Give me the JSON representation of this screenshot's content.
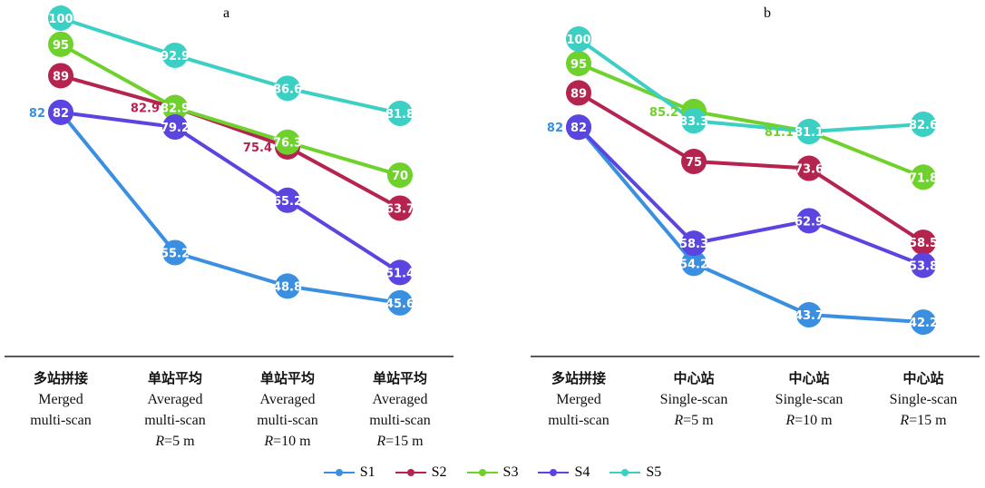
{
  "chart_data": [
    {
      "type": "line",
      "title": "a",
      "ylim": [
        40,
        100
      ],
      "categories": [
        {
          "zh": "多站拼接",
          "en1": "Merged",
          "en2": "multi-scan",
          "r": ""
        },
        {
          "zh": "单站平均",
          "en1": "Averaged",
          "en2": "multi-scan",
          "r": "R=5 m"
        },
        {
          "zh": "单站平均",
          "en1": "Averaged",
          "en2": "multi-scan",
          "r": "R=10 m"
        },
        {
          "zh": "单站平均",
          "en1": "Averaged",
          "en2": "multi-scan",
          "r": "R=15 m"
        }
      ],
      "series": [
        {
          "name": "S1",
          "color": "#3b8fe0",
          "values": [
            82,
            55.2,
            48.8,
            45.6
          ]
        },
        {
          "name": "S2",
          "color": "#b5234f",
          "values": [
            89,
            82.9,
            75.4,
            63.7
          ]
        },
        {
          "name": "S3",
          "color": "#6fd12b",
          "values": [
            95,
            82.9,
            76.3,
            70
          ]
        },
        {
          "name": "S4",
          "color": "#5a45e0",
          "values": [
            82,
            79.2,
            65.2,
            51.4
          ]
        },
        {
          "name": "S5",
          "color": "#3ccfc4",
          "values": [
            100,
            92.9,
            86.6,
            81.8
          ]
        }
      ]
    },
    {
      "type": "line",
      "title": "b",
      "ylim": [
        40,
        100
      ],
      "categories": [
        {
          "zh": "多站拼接",
          "en1": "Merged",
          "en2": "multi-scan",
          "r": ""
        },
        {
          "zh": "中心站",
          "en1": "Single-scan",
          "en2": "R=5 m",
          "r": ""
        },
        {
          "zh": "中心站",
          "en1": "Single-scan",
          "en2": "R=10 m",
          "r": ""
        },
        {
          "zh": "中心站",
          "en1": "Single-scan",
          "en2": "R=15 m",
          "r": ""
        }
      ],
      "series": [
        {
          "name": "S1",
          "color": "#3b8fe0",
          "values": [
            82,
            54.2,
            43.7,
            42.2
          ]
        },
        {
          "name": "S2",
          "color": "#b5234f",
          "values": [
            89,
            75,
            73.6,
            58.5
          ]
        },
        {
          "name": "S3",
          "color": "#6fd12b",
          "values": [
            95,
            85.2,
            81.1,
            71.8
          ]
        },
        {
          "name": "S4",
          "color": "#5a45e0",
          "values": [
            82,
            58.3,
            62.9,
            53.8
          ]
        },
        {
          "name": "S5",
          "color": "#3ccfc4",
          "values": [
            100,
            83.3,
            81.1,
            82.6
          ]
        }
      ]
    }
  ],
  "legend": [
    "S1",
    "S2",
    "S3",
    "S4",
    "S5"
  ]
}
